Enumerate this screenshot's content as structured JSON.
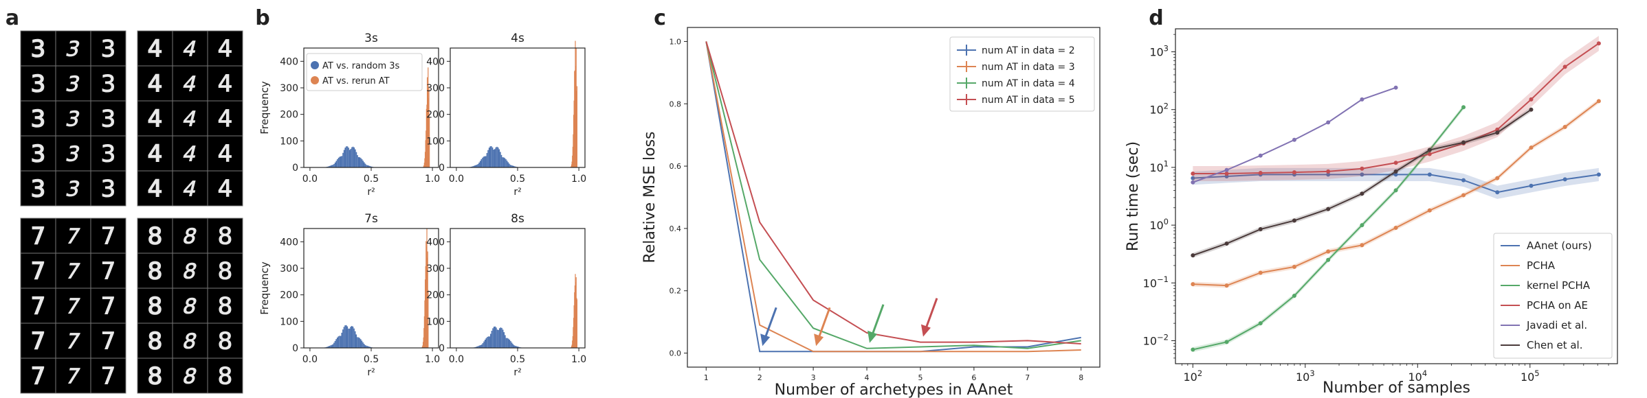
{
  "panel_letters": [
    "a",
    "b",
    "c",
    "d"
  ],
  "panel_a": {
    "digits": [
      "3",
      "4",
      "7",
      "8"
    ]
  },
  "chart_data": [
    {
      "panel": "b",
      "type": "histogram",
      "xlabel": "r²",
      "ylabel": "Frequency",
      "xlim": [
        -0.05,
        1.05
      ],
      "ylim": [
        0,
        450
      ],
      "xticks": [
        "0.0",
        "0.5",
        "1.0"
      ],
      "yticks": [
        "0",
        "100",
        "200",
        "300",
        "400"
      ],
      "legend": [
        {
          "name": "AT vs. random 3s",
          "color": "#4c72b0"
        },
        {
          "name": "AT vs. rerun AT",
          "color": "#dd8452"
        }
      ],
      "subplots": [
        {
          "title": "3s",
          "blue": {
            "center": 0.32,
            "peak": 75
          },
          "orange": {
            "center": 0.96,
            "peak": 330
          }
        },
        {
          "title": "4s",
          "blue": {
            "center": 0.3,
            "peak": 75
          },
          "orange": {
            "center": 0.97,
            "peak": 425
          }
        },
        {
          "title": "7s",
          "blue": {
            "center": 0.31,
            "peak": 80
          },
          "orange": {
            "center": 0.95,
            "peak": 400
          }
        },
        {
          "title": "8s",
          "blue": {
            "center": 0.33,
            "peak": 75
          },
          "orange": {
            "center": 0.97,
            "peak": 255
          }
        }
      ]
    },
    {
      "panel": "c",
      "type": "line",
      "xlabel": "Number of archetypes in AAnet",
      "ylabel": "Relative MSE loss",
      "xlim": [
        0.65,
        8.35
      ],
      "ylim": [
        -0.045,
        1.045
      ],
      "x": [
        1,
        2,
        3,
        4,
        5,
        6,
        7,
        8
      ],
      "yticks": [
        "0.0",
        "0.2",
        "0.4",
        "0.6",
        "0.8",
        "1.0"
      ],
      "legend_position": "top-right",
      "series": [
        {
          "name": "num AT in data = 2",
          "color": "#4c72b0",
          "values": [
            1.0,
            0.005,
            0.005,
            0.005,
            0.005,
            0.02,
            0.02,
            0.05
          ]
        },
        {
          "name": "num AT in data = 3",
          "color": "#dd8452",
          "values": [
            1.0,
            0.09,
            0.005,
            0.005,
            0.005,
            0.005,
            0.005,
            0.01
          ]
        },
        {
          "name": "num AT in data = 4",
          "color": "#55a868",
          "values": [
            1.0,
            0.3,
            0.08,
            0.015,
            0.02,
            0.025,
            0.015,
            0.04
          ]
        },
        {
          "name": "num AT in data = 5",
          "color": "#c44e52",
          "values": [
            1.0,
            0.42,
            0.17,
            0.065,
            0.035,
            0.035,
            0.04,
            0.03
          ]
        }
      ],
      "arrows": [
        {
          "x": 2,
          "color": "#4c72b0"
        },
        {
          "x": 3,
          "color": "#dd8452"
        },
        {
          "x": 4,
          "color": "#55a868"
        },
        {
          "x": 5,
          "color": "#c44e52"
        }
      ]
    },
    {
      "panel": "d",
      "type": "line",
      "log_x": true,
      "log_y": true,
      "xlabel": "Number of samples",
      "ylabel": "Run time (sec)",
      "xlim": [
        70,
        600000
      ],
      "ylim": [
        0.004,
        2500
      ],
      "xticks": [
        {
          "base": "10",
          "exp": "2"
        },
        {
          "base": "10",
          "exp": "3"
        },
        {
          "base": "10",
          "exp": "4"
        },
        {
          "base": "10",
          "exp": "5"
        }
      ],
      "yticks": [
        {
          "base": "10",
          "exp": "−2"
        },
        {
          "base": "10",
          "exp": "−1"
        },
        {
          "base": "10",
          "exp": "0"
        },
        {
          "base": "10",
          "exp": "1"
        },
        {
          "base": "10",
          "exp": "2"
        },
        {
          "base": "10",
          "exp": "3"
        }
      ],
      "legend_position": "bottom-right",
      "series": [
        {
          "name": "AAnet (ours)",
          "color": "#4c72b0",
          "band": 0.3,
          "x": [
            100,
            200,
            400,
            800,
            1600,
            3200,
            6400,
            12800,
            25600,
            51200,
            102400,
            204800,
            409600
          ],
          "values": [
            6.5,
            7,
            7.5,
            7.5,
            7.5,
            7.5,
            7.5,
            7.5,
            6,
            3.7,
            4.8,
            6.2,
            7.5
          ]
        },
        {
          "name": "PCHA",
          "color": "#dd8452",
          "band": 0.1,
          "x": [
            100,
            200,
            400,
            800,
            1600,
            3200,
            6400,
            12800,
            25600,
            51200,
            102400,
            204800,
            409600
          ],
          "values": [
            0.095,
            0.09,
            0.15,
            0.19,
            0.35,
            0.45,
            0.9,
            1.8,
            3.3,
            6.5,
            22,
            50,
            140
          ]
        },
        {
          "name": "kernel PCHA",
          "color": "#55a868",
          "band": 0.1,
          "x": [
            100,
            200,
            400,
            800,
            1600,
            3200,
            6400,
            12800,
            25600
          ],
          "values": [
            0.007,
            0.0095,
            0.02,
            0.06,
            0.25,
            1.0,
            4,
            20,
            110
          ]
        },
        {
          "name": "PCHA on AE",
          "color": "#c44e52",
          "band": 0.35,
          "x": [
            100,
            200,
            400,
            800,
            1600,
            3200,
            6400,
            12800,
            25600,
            51200,
            102400,
            204800,
            409600
          ],
          "values": [
            7.8,
            7.8,
            8,
            8.2,
            8.5,
            9.5,
            12,
            17,
            26,
            45,
            150,
            550,
            1400
          ]
        },
        {
          "name": "Javadi et al.",
          "color": "#8172b2",
          "band": 0,
          "x": [
            100,
            200,
            400,
            800,
            1600,
            3200,
            6400
          ],
          "values": [
            5.5,
            9,
            16,
            30,
            60,
            150,
            240
          ]
        },
        {
          "name": "Chen et al.",
          "color": "#4a3a3a",
          "band": 0.1,
          "x": [
            100,
            200,
            400,
            800,
            1600,
            3200,
            6400,
            12800,
            25600,
            51200,
            102400
          ],
          "values": [
            0.3,
            0.48,
            0.85,
            1.2,
            1.9,
            3.5,
            8.5,
            20,
            27,
            40,
            100
          ]
        }
      ]
    }
  ]
}
